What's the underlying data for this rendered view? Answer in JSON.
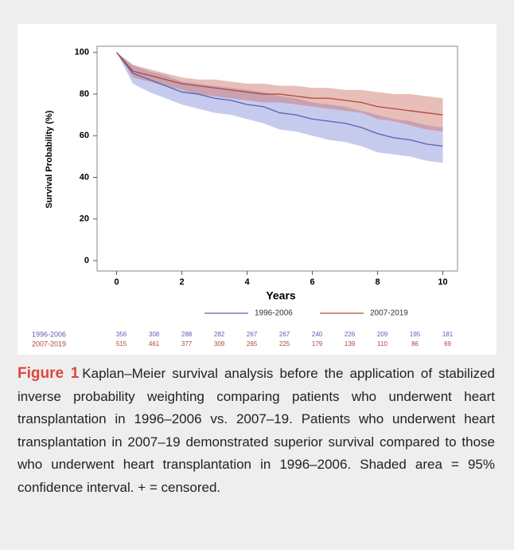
{
  "chart_data": {
    "type": "line",
    "xlabel": "Years",
    "ylabel": "Survival Probability (%)",
    "x": [
      0,
      0.5,
      1,
      1.5,
      2,
      2.5,
      3,
      3.5,
      4,
      4.5,
      5,
      5.5,
      6,
      6.5,
      7,
      7.5,
      8,
      8.5,
      9,
      9.5,
      10
    ],
    "series": [
      {
        "name": "1996-2006",
        "color": "#5a5fb0",
        "band_color": "rgba(120,130,215,0.42)",
        "values": [
          100,
          90,
          87,
          84,
          81,
          80,
          78,
          77,
          75,
          74,
          71,
          70,
          68,
          67,
          66,
          64,
          61,
          59,
          58,
          56,
          55
        ],
        "ci_lower": [
          100,
          85,
          81,
          78,
          75,
          73,
          71,
          70,
          68,
          66,
          63,
          62,
          60,
          58,
          57,
          55,
          52,
          51,
          50,
          48,
          47
        ],
        "ci_upper": [
          100,
          94,
          91,
          89,
          86,
          85,
          84,
          83,
          82,
          81,
          79,
          78,
          76,
          75,
          74,
          72,
          70,
          68,
          67,
          65,
          64
        ]
      },
      {
        "name": "2007-2019",
        "color": "#b0473a",
        "band_color": "rgba(205,110,100,0.45)",
        "values": [
          100,
          91,
          89,
          87,
          85,
          84,
          83,
          82,
          81,
          80,
          80,
          79,
          78,
          78,
          77,
          76,
          74,
          73,
          72,
          71,
          70
        ],
        "ci_lower": [
          100,
          88,
          86,
          84,
          82,
          80,
          79,
          78,
          77,
          76,
          76,
          75,
          74,
          73,
          72,
          71,
          68,
          67,
          65,
          63,
          62
        ],
        "ci_upper": [
          100,
          94,
          92,
          90,
          88,
          87,
          87,
          86,
          85,
          85,
          84,
          84,
          83,
          83,
          82,
          82,
          81,
          80,
          80,
          79,
          78
        ]
      }
    ],
    "xlim": [
      -0.6,
      10.45
    ],
    "xticks": [
      0,
      2,
      4,
      6,
      8,
      10
    ],
    "ylim": [
      -5,
      103
    ],
    "yticks": [
      0,
      20,
      40,
      60,
      80,
      100
    ],
    "at_risk": [
      {
        "name": "1996-2006",
        "color": "#5a5fb0",
        "values": [
          356,
          308,
          288,
          282,
          267,
          267,
          240,
          226,
          209,
          195,
          181
        ]
      },
      {
        "name": "2007-2019",
        "color": "#b0473a",
        "values": [
          515,
          461,
          377,
          309,
          265,
          225,
          179,
          139,
          110,
          86,
          69
        ]
      }
    ]
  },
  "caption": {
    "label": "Figure 1",
    "text": "Kaplan–Meier survival analysis before the application of stabilized inverse probability weighting comparing patients who underwent heart transplantation in 1996–2006 vs. 2007–19. Patients who underwent heart transplantation in 2007–19 demonstrated superior survival compared to those who underwent heart transplantation in 1996–2006. Shaded area = 95% confidence interval. + = censored."
  }
}
